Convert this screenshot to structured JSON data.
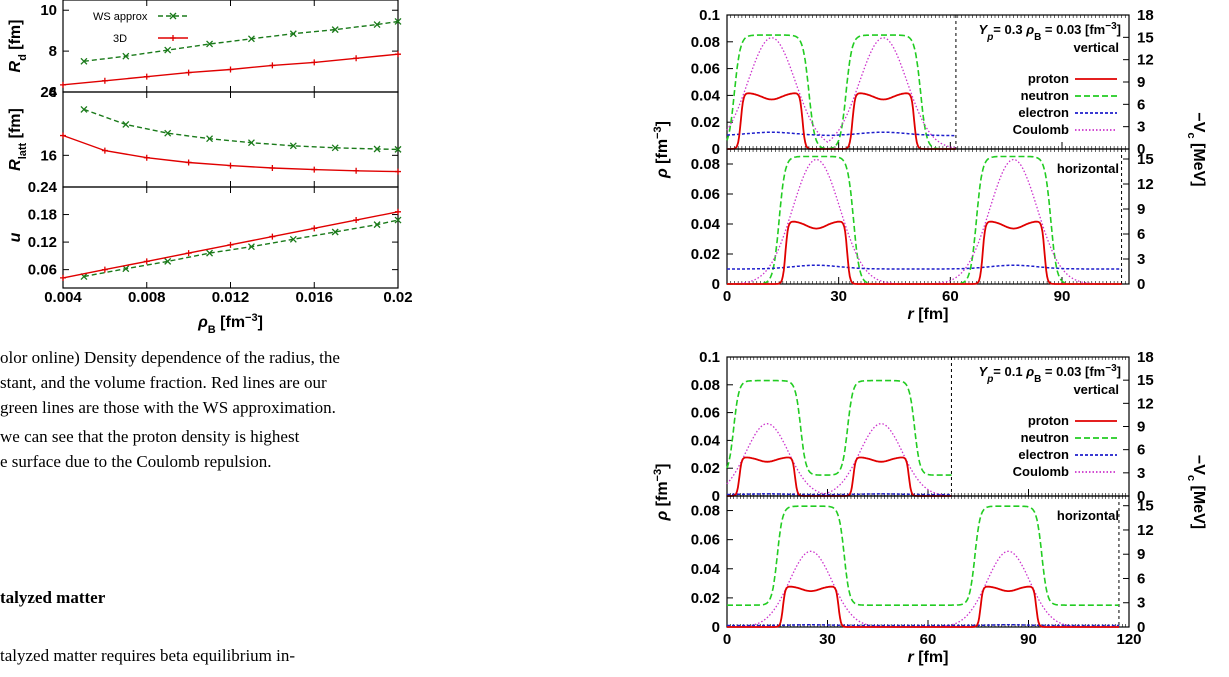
{
  "text": {
    "caption_line1": "olor online) Density dependence of the radius, the",
    "caption_line2": "stant, and the volume fraction. Red lines are our",
    "caption_line3": " green lines are those with the WS approximation.",
    "body_line1": " we can see that the proton density is highest",
    "body_line2": "e surface due to the Coulomb repulsion.",
    "section_heading": "talyzed matter",
    "body_line3": "talyzed matter requires beta equilibrium in-"
  },
  "chart_data": [
    {
      "id": "left-density-dependence",
      "type": "line",
      "xlabel": "ρB [fm−3]",
      "xlim": [
        0.004,
        0.02
      ],
      "xticks": [
        "0.004",
        "0.008",
        "0.012",
        "0.016",
        "0.02"
      ],
      "legend": [
        "WS approx",
        "3D"
      ],
      "panels": [
        {
          "ylabel": "Rd [fm]",
          "ylim": [
            6,
            10.5
          ],
          "yticks": [
            "6",
            "8",
            "10"
          ],
          "series": [
            {
              "name": "WS approx",
              "color": "#1a7a1a",
              "dashed": true,
              "marker": "x",
              "x": [
                0.005,
                0.007,
                0.009,
                0.011,
                0.013,
                0.015,
                0.017,
                0.019,
                0.02
              ],
              "y": [
                7.5,
                7.75,
                8.05,
                8.35,
                8.6,
                8.85,
                9.05,
                9.3,
                9.45
              ]
            },
            {
              "name": "3D",
              "color": "#e00000",
              "dashed": false,
              "marker": "+",
              "x": [
                0.004,
                0.006,
                0.008,
                0.01,
                0.012,
                0.014,
                0.016,
                0.018,
                0.02
              ],
              "y": [
                6.35,
                6.55,
                6.75,
                6.95,
                7.1,
                7.3,
                7.45,
                7.65,
                7.85
              ]
            }
          ]
        },
        {
          "ylabel": "Rlatt [fm]",
          "ylim": [
            12,
            24
          ],
          "yticks": [
            "16",
            "24"
          ],
          "series": [
            {
              "name": "WS approx",
              "color": "#1a7a1a",
              "dashed": true,
              "marker": "x",
              "x": [
                0.005,
                0.007,
                0.009,
                0.011,
                0.013,
                0.015,
                0.017,
                0.019,
                0.02
              ],
              "y": [
                21.8,
                19.9,
                18.8,
                18.1,
                17.6,
                17.2,
                16.95,
                16.8,
                16.75
              ]
            },
            {
              "name": "3D",
              "color": "#e00000",
              "dashed": false,
              "marker": "+",
              "x": [
                0.004,
                0.006,
                0.008,
                0.01,
                0.012,
                0.014,
                0.016,
                0.018,
                0.02
              ],
              "y": [
                18.5,
                16.6,
                15.7,
                15.1,
                14.7,
                14.4,
                14.2,
                14.05,
                13.95
              ]
            }
          ]
        },
        {
          "ylabel": "u",
          "ylim": [
            0.02,
            0.24
          ],
          "yticks": [
            "0.06",
            "0.12",
            "0.18",
            "0.24"
          ],
          "series": [
            {
              "name": "WS approx",
              "color": "#1a7a1a",
              "dashed": true,
              "marker": "x",
              "x": [
                0.005,
                0.007,
                0.009,
                0.011,
                0.013,
                0.015,
                0.017,
                0.019,
                0.02
              ],
              "y": [
                0.045,
                0.062,
                0.078,
                0.096,
                0.11,
                0.126,
                0.142,
                0.158,
                0.168
              ]
            },
            {
              "name": "3D",
              "color": "#e00000",
              "dashed": false,
              "marker": "+",
              "x": [
                0.004,
                0.006,
                0.008,
                0.01,
                0.012,
                0.014,
                0.016,
                0.018,
                0.02
              ],
              "y": [
                0.042,
                0.06,
                0.078,
                0.096,
                0.114,
                0.132,
                0.15,
                0.168,
                0.186
              ]
            }
          ]
        }
      ]
    },
    {
      "id": "right-top-yp03",
      "type": "line",
      "annotation_main": "Yp= 0.3  ρB = 0.03 [fm−3]",
      "xlabel": "r [fm]",
      "xlim": [
        0,
        108
      ],
      "xticks": [
        "0",
        "30",
        "60",
        "90"
      ],
      "ylabel_left": "ρ [fm−3]",
      "ylabel_right": "−Vc [MeV]",
      "ylim": [
        0,
        0.1
      ],
      "legend": [
        "proton",
        "neutron",
        "electron",
        "Coulomb"
      ],
      "panels": [
        {
          "label": "vertical",
          "cell_size": 61.5,
          "lobe_centers": [
            12,
            42
          ],
          "yticks_left": [
            "0",
            "0.02",
            "0.04",
            "0.06",
            "0.08",
            "0.1"
          ],
          "yticks_right": [
            "0",
            "3",
            "6",
            "9",
            "12",
            "15",
            "18"
          ],
          "proton_peak": 0.042,
          "neutron_peak": 0.085,
          "electron_level": 0.01,
          "coulomb_peak": 0.083
        },
        {
          "label": "horizontal",
          "cell_size": 106,
          "lobe_centers": [
            24,
            77
          ],
          "yticks_left": [
            "0",
            "0.02",
            "0.04",
            "0.06",
            "0.08"
          ],
          "yticks_right": [
            "0",
            "3",
            "6",
            "9",
            "12",
            "15"
          ],
          "proton_peak": 0.042,
          "neutron_peak": 0.085,
          "electron_level": 0.01,
          "coulomb_peak": 0.083
        }
      ]
    },
    {
      "id": "right-bottom-yp01",
      "type": "line",
      "annotation_main": "Yp= 0.1  ρB = 0.03 [fm−3]",
      "xlabel": "r [fm]",
      "xlim": [
        0,
        120
      ],
      "xticks": [
        "0",
        "30",
        "60",
        "90",
        "120"
      ],
      "ylabel_left": "ρ [fm−3]",
      "ylabel_right": "−Vc [MeV]",
      "ylim": [
        0,
        0.1
      ],
      "legend": [
        "proton",
        "neutron",
        "electron",
        "Coulomb"
      ],
      "panels": [
        {
          "label": "vertical",
          "cell_size": 67,
          "lobe_centers": [
            12,
            46
          ],
          "yticks_left": [
            "0",
            "0.02",
            "0.04",
            "0.06",
            "0.08",
            "0.1"
          ],
          "yticks_right": [
            "0",
            "3",
            "6",
            "9",
            "12",
            "15",
            "18"
          ],
          "proton_peak": 0.028,
          "neutron_peak": 0.083,
          "neutron_base": 0.015,
          "electron_level": 0.001,
          "coulomb_peak": 0.052
        },
        {
          "label": "horizontal",
          "cell_size": 117,
          "lobe_centers": [
            25,
            84
          ],
          "yticks_left": [
            "0",
            "0.02",
            "0.04",
            "0.06",
            "0.08"
          ],
          "yticks_right": [
            "0",
            "3",
            "6",
            "9",
            "12",
            "15"
          ],
          "proton_peak": 0.028,
          "neutron_peak": 0.083,
          "neutron_base": 0.015,
          "electron_level": 0.001,
          "coulomb_peak": 0.052
        }
      ]
    }
  ],
  "colors": {
    "proton": "#e00000",
    "neutron": "#22cc22",
    "electron": "#1f1fcc",
    "coulomb": "#cc33cc",
    "ws": "#1a7a1a"
  }
}
